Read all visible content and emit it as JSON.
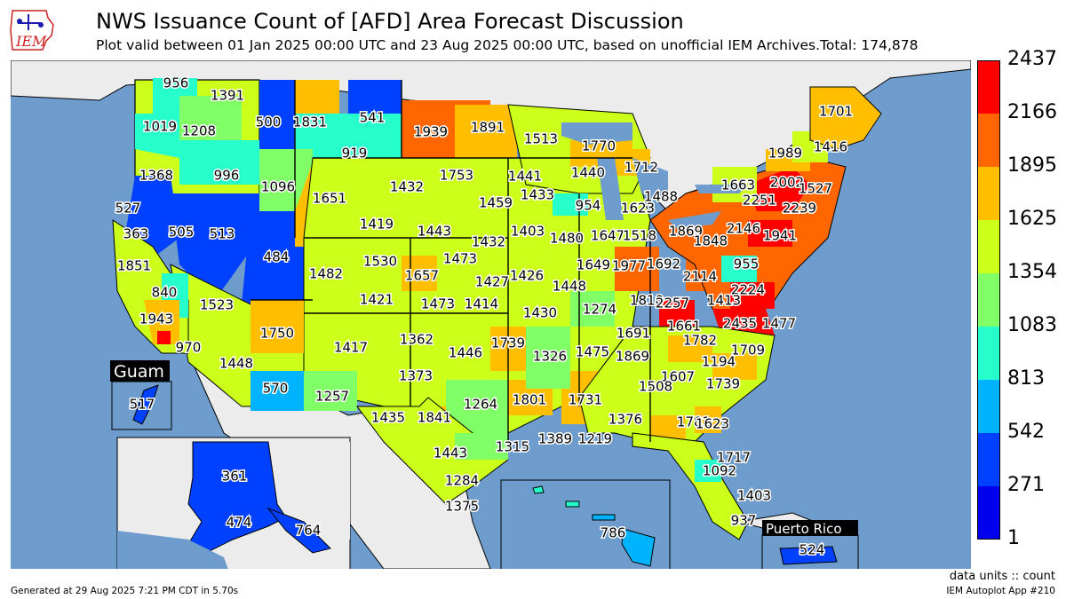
{
  "header": {
    "logo_text": "IEM",
    "title": "NWS Issuance Count of [AFD] Area Forecast Discussion",
    "subtitle": "Plot valid between 01 Jan 2025 00:00 UTC and 23 Aug 2025 00:00 UTC, based on unofficial IEM Archives.Total: 174,878"
  },
  "colorbar": {
    "labels": [
      "2437",
      "2166",
      "1895",
      "1625",
      "1354",
      "1083",
      "813",
      "542",
      "271",
      "1"
    ],
    "colors": [
      "#ff0000",
      "#ff6600",
      "#ffbf00",
      "#ccff1a",
      "#80ff66",
      "#26ffcc",
      "#00b3ff",
      "#0040ff",
      "#0000ee"
    ]
  },
  "insets": {
    "guam": "Guam",
    "puerto_rico": "Puerto Rico"
  },
  "wfo_counts": [
    "956",
    "1391",
    "500",
    "1831",
    "541",
    "1939",
    "1891",
    "1513",
    "1770",
    "1701",
    "1019",
    "1208",
    "919",
    "1416",
    "1989",
    "1712",
    "1441",
    "1440",
    "1368",
    "996",
    "1096",
    "1753",
    "1663",
    "2002",
    "1527",
    "1432",
    "1488",
    "1433",
    "954",
    "1651",
    "527",
    "1459",
    "1623",
    "2251",
    "2239",
    "363",
    "505",
    "513",
    "1419",
    "1443",
    "1403",
    "1432",
    "1480",
    "1647",
    "1518",
    "1869",
    "1848",
    "2146",
    "1941",
    "484",
    "1473",
    "955",
    "1851",
    "1482",
    "1530",
    "1657",
    "1427",
    "1426",
    "1649",
    "1977",
    "1692",
    "2114",
    "840",
    "1421",
    "1473",
    "1414",
    "1448",
    "2224",
    "1523",
    "1810",
    "2257",
    "1413",
    "1943",
    "1750",
    "1430",
    "1274",
    "1661",
    "2435",
    "1477",
    "1362",
    "1691",
    "1782",
    "970",
    "1417",
    "1739",
    "1446",
    "1326",
    "1475",
    "1869",
    "1709",
    "1448",
    "1373",
    "1194",
    "1607",
    "1739",
    "570",
    "1257",
    "1508",
    "1801",
    "1731",
    "1435",
    "1841",
    "1264",
    "1376",
    "1781",
    "1623",
    "1389",
    "1219",
    "1315",
    "1443",
    "1717",
    "1092",
    "1284",
    "1375",
    "1403",
    "937",
    "517",
    "361",
    "474",
    "764",
    "786",
    "524"
  ],
  "footer": {
    "units": "data units :: count",
    "generated": "Generated at 29 Aug 2025 7:21 PM CDT in 5.70s",
    "app": "IEM Autoplot App #210"
  }
}
